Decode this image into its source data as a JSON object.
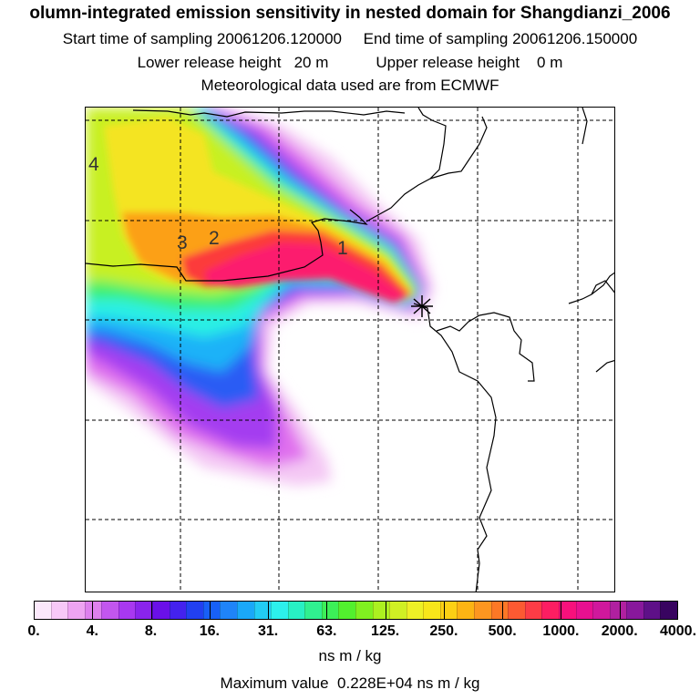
{
  "header": {
    "title": "olumn-integrated emission sensitivity in nested domain for Shangdianzi_2006",
    "sampling": "Start time of sampling 20061206.120000     End time of sampling 20061206.150000",
    "release": "Lower release height   20 m           Upper release height    0 m",
    "met": "Meteorological data used are from ECMWF"
  },
  "map": {
    "region_labels": [
      "4",
      "3",
      "2",
      "1"
    ],
    "receptor_marker": "star"
  },
  "colorbar": {
    "tick_labels": [
      "0.",
      "4.",
      "8.",
      "16.",
      "31.",
      "63.",
      "125.",
      "250.",
      "500.",
      "1000.",
      "2000.",
      "4000."
    ],
    "colors": [
      "#fbe8fb",
      "#f7c8f7",
      "#eea4f2",
      "#de80ee",
      "#c256ee",
      "#a838f0",
      "#8a24ec",
      "#6a10e8",
      "#4422ee",
      "#2240f0",
      "#1860f8",
      "#1f84f8",
      "#1aa8f8",
      "#22ccf4",
      "#2cf0ec",
      "#28f0c4",
      "#30f090",
      "#3cf058",
      "#52f02e",
      "#80f020",
      "#acf020",
      "#d0f024",
      "#eef026",
      "#f8e61a",
      "#fcd014",
      "#fcb414",
      "#fc9620",
      "#fc7826",
      "#fc5a32",
      "#fc3c46",
      "#fc1e62",
      "#f8107c",
      "#e81090",
      "#d0189c",
      "#b020a0",
      "#88189c",
      "#5e1088",
      "#380460"
    ],
    "unit": "ns m / kg"
  },
  "footer": {
    "maximum": "Maximum value  0.228E+04 ns m / kg"
  }
}
